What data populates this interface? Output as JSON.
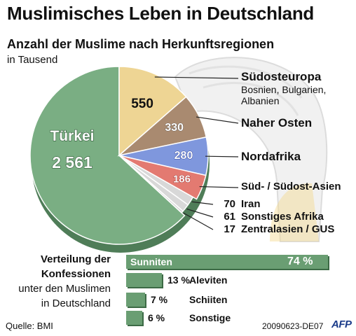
{
  "title": "Muslimisches Leben in Deutschland",
  "subtitle": "Anzahl der Muslime nach Herkunftsregionen",
  "unit": "in Tausend",
  "colors": {
    "tuerkei": "#7aae83",
    "suedosteuropa": "#eed594",
    "naher_osten": "#a98a70",
    "nordafrika": "#7f97dd",
    "sued_asien": "#e37a71",
    "small": "#d8d8d8",
    "bar": "#6a9e73"
  },
  "chart_data": [
    {
      "type": "pie",
      "title": "Anzahl der Muslime nach Herkunftsregionen",
      "unit": "in Tausend",
      "slices": [
        {
          "label": "Türkei",
          "value": 2561,
          "value_text": "2 561"
        },
        {
          "label": "Südosteuropa",
          "sublabel": "Bosnien, Bulgarien, Albanien",
          "value": 550,
          "value_text": "550"
        },
        {
          "label": "Naher Osten",
          "value": 330,
          "value_text": "330"
        },
        {
          "label": "Nordafrika",
          "value": 280,
          "value_text": "280"
        },
        {
          "label": "Süd- / Südost-Asien",
          "value": 186,
          "value_text": "186"
        },
        {
          "label": "Iran",
          "value": 70,
          "value_text": "70"
        },
        {
          "label": "Sonstiges Afrika",
          "value": 61,
          "value_text": "61"
        },
        {
          "label": "Zentralasien / GUS",
          "value": 17,
          "value_text": "17"
        }
      ]
    },
    {
      "type": "bar",
      "orientation": "horizontal",
      "title": "Verteilung der Konfessionen",
      "subtitle": "unter den Muslimen in Deutschland",
      "categories": [
        "Sunniten",
        "Aleviten",
        "Schiiten",
        "Sonstige"
      ],
      "values": [
        74,
        13,
        7,
        6
      ],
      "value_texts": [
        "74 %",
        "13 %",
        "7 %",
        "6 %"
      ]
    }
  ],
  "confessions_title": {
    "line1": "Verteilung der",
    "line2": "Konfessionen",
    "line3": "unter den Muslimen",
    "line4": "in Deutschland"
  },
  "source": "Quelle: BMI",
  "code": "20090623-DE07",
  "logo": "AFP"
}
